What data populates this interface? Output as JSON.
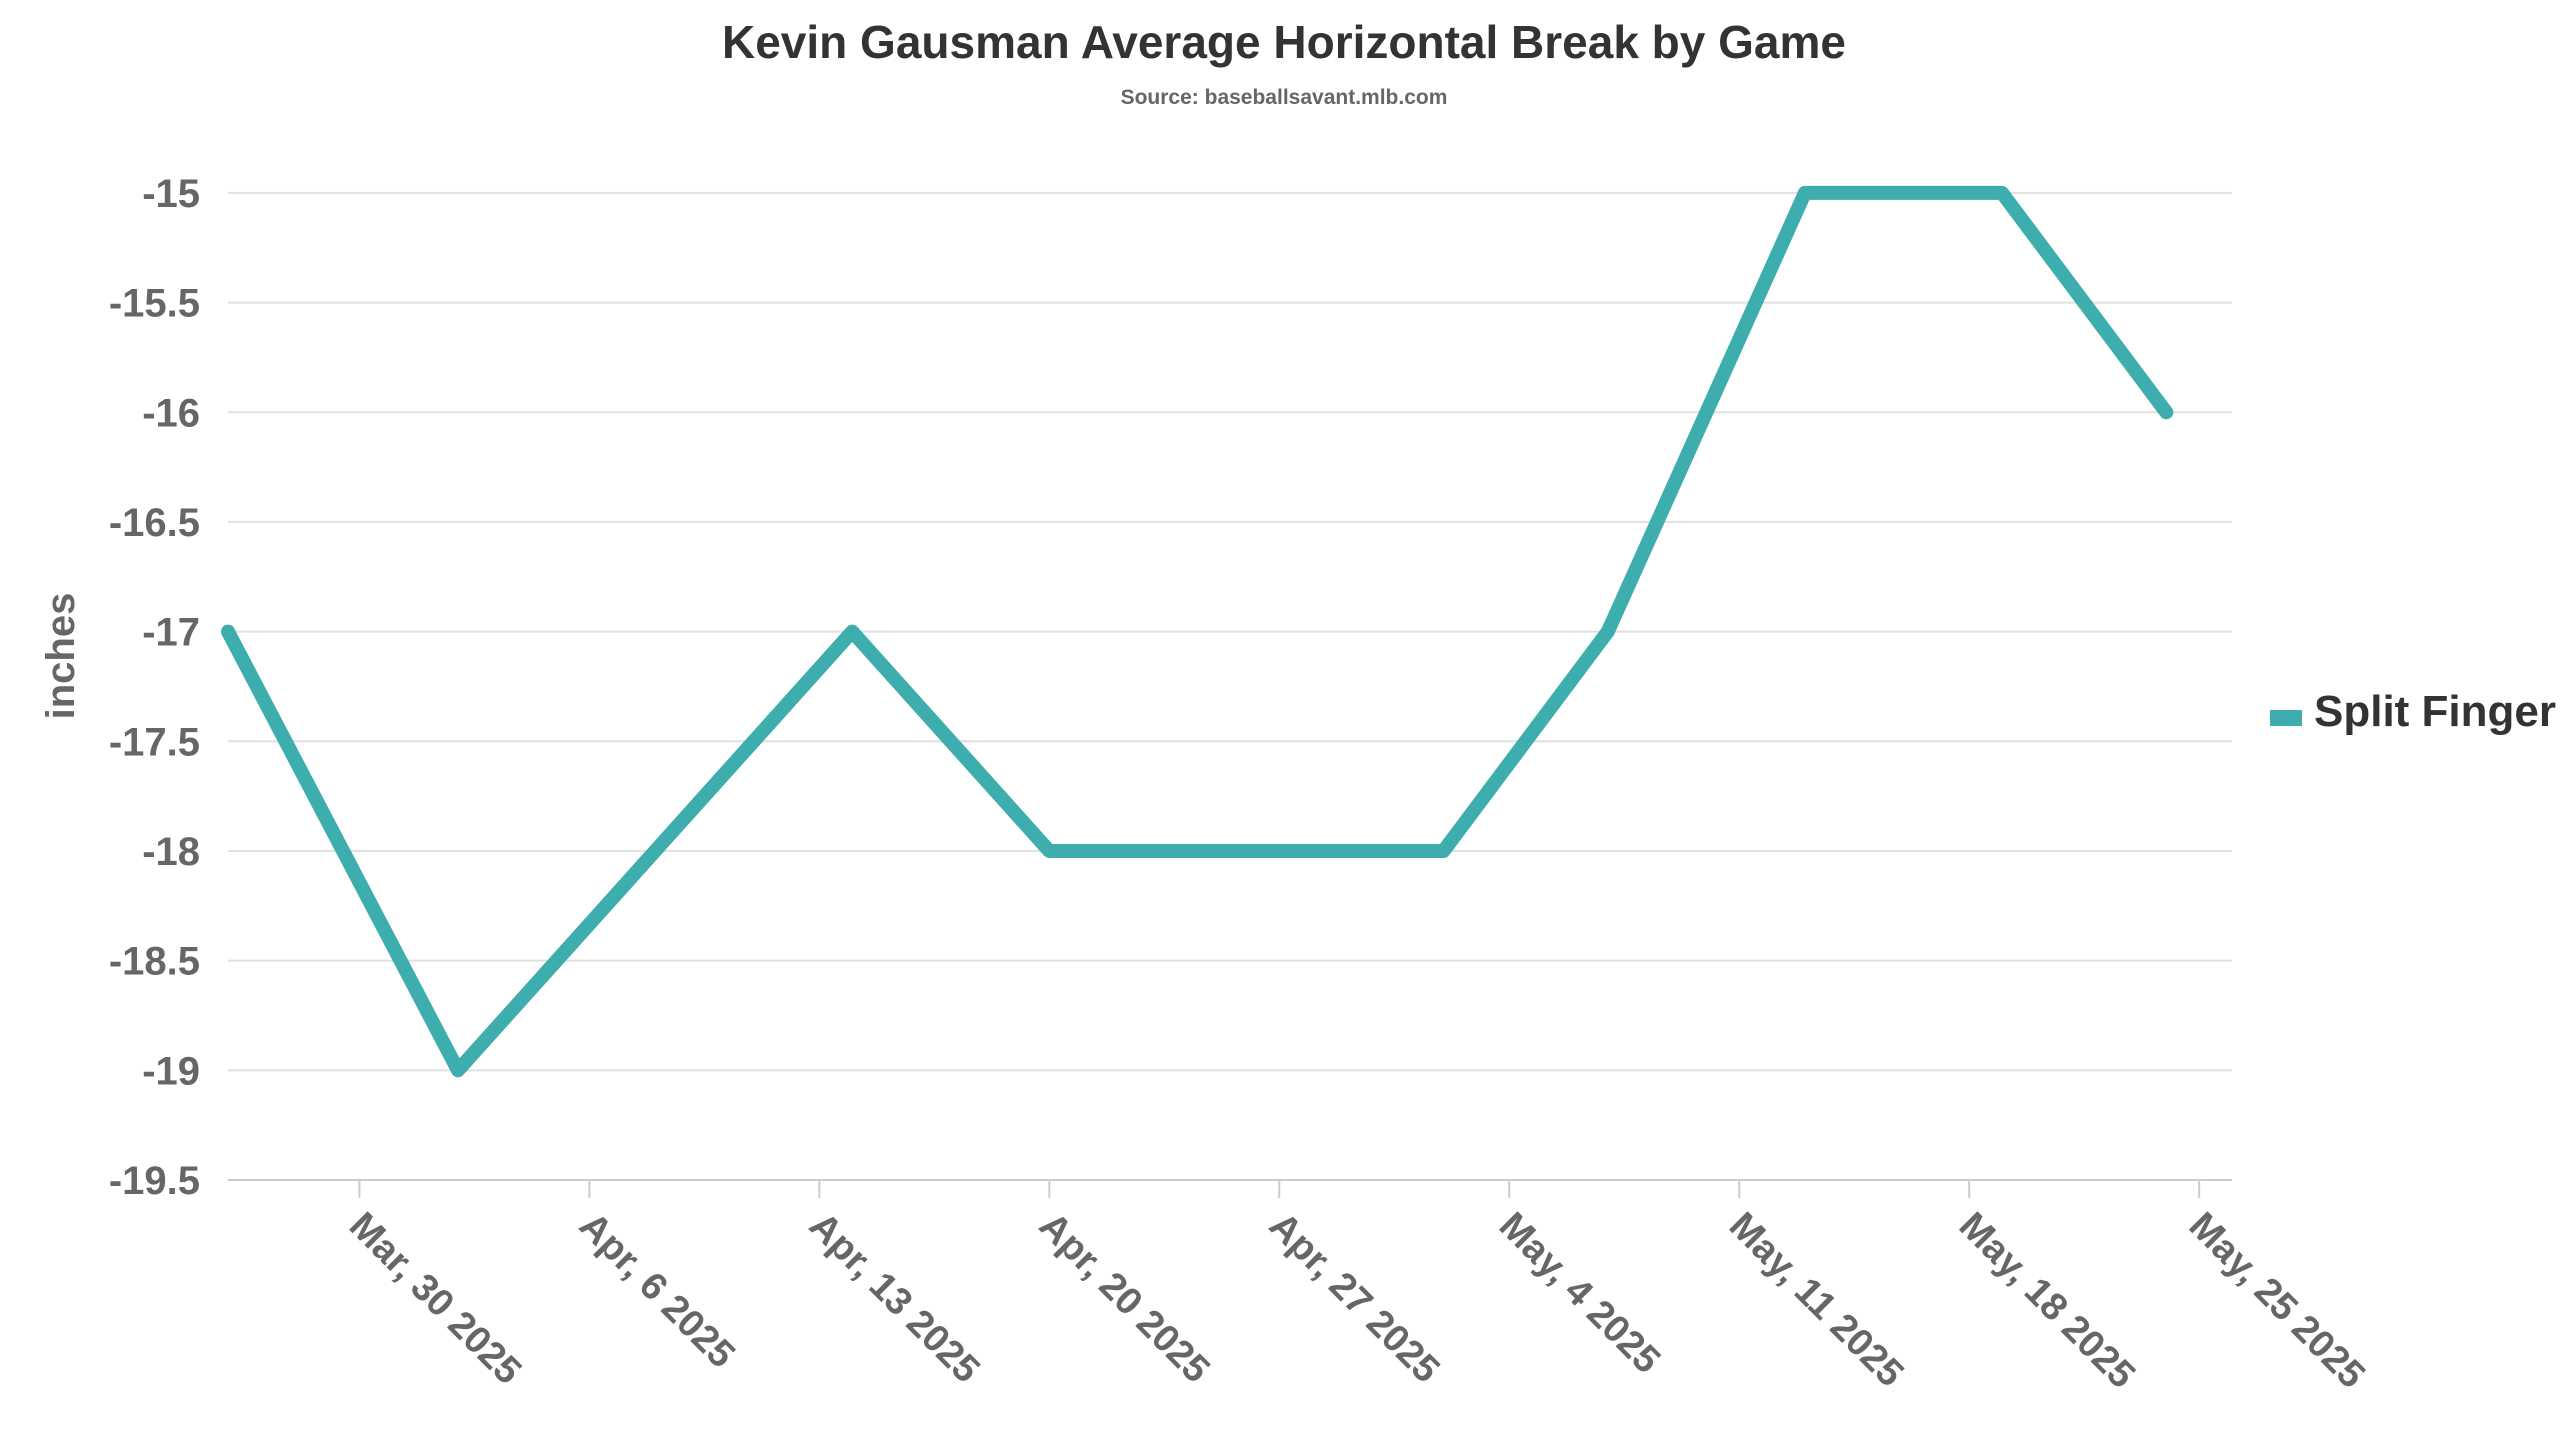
{
  "chart_data": {
    "type": "line",
    "title": "Kevin Gausman Average Horizontal Break by Game",
    "subtitle": "Source: baseballsavant.mlb.com",
    "xlabel": "",
    "ylabel": "inches",
    "x_tick_labels": [
      "Mar, 30 2025",
      "Apr, 6 2025",
      "Apr, 13 2025",
      "Apr, 20 2025",
      "Apr, 27 2025",
      "May, 4 2025",
      "May, 11 2025",
      "May, 18 2025",
      "May, 25 2025"
    ],
    "x_tick_dates": [
      "2025-03-30",
      "2025-04-06",
      "2025-04-13",
      "2025-04-20",
      "2025-04-27",
      "2025-05-04",
      "2025-05-11",
      "2025-05-18",
      "2025-05-25"
    ],
    "xlim": [
      "2025-03-26",
      "2025-05-26"
    ],
    "ylim": [
      -19.5,
      -14.85
    ],
    "y_ticks": [
      -15,
      -15.5,
      -16,
      -16.5,
      -17,
      -17.5,
      -18,
      -18.5,
      -19,
      -19.5
    ],
    "grid": true,
    "legend_position": "right",
    "series": [
      {
        "name": "Split Finger",
        "color": "#3dadad",
        "x": [
          "2025-03-26",
          "2025-04-02",
          "2025-04-08",
          "2025-04-14",
          "2025-04-20",
          "2025-04-26",
          "2025-05-02",
          "2025-05-07",
          "2025-05-10",
          "2025-05-13",
          "2025-05-19",
          "2025-05-24"
        ],
        "y": [
          -17,
          -19,
          -18,
          -17,
          -18,
          -18,
          -18,
          -17,
          -16,
          -15,
          -15,
          -16
        ]
      }
    ]
  }
}
